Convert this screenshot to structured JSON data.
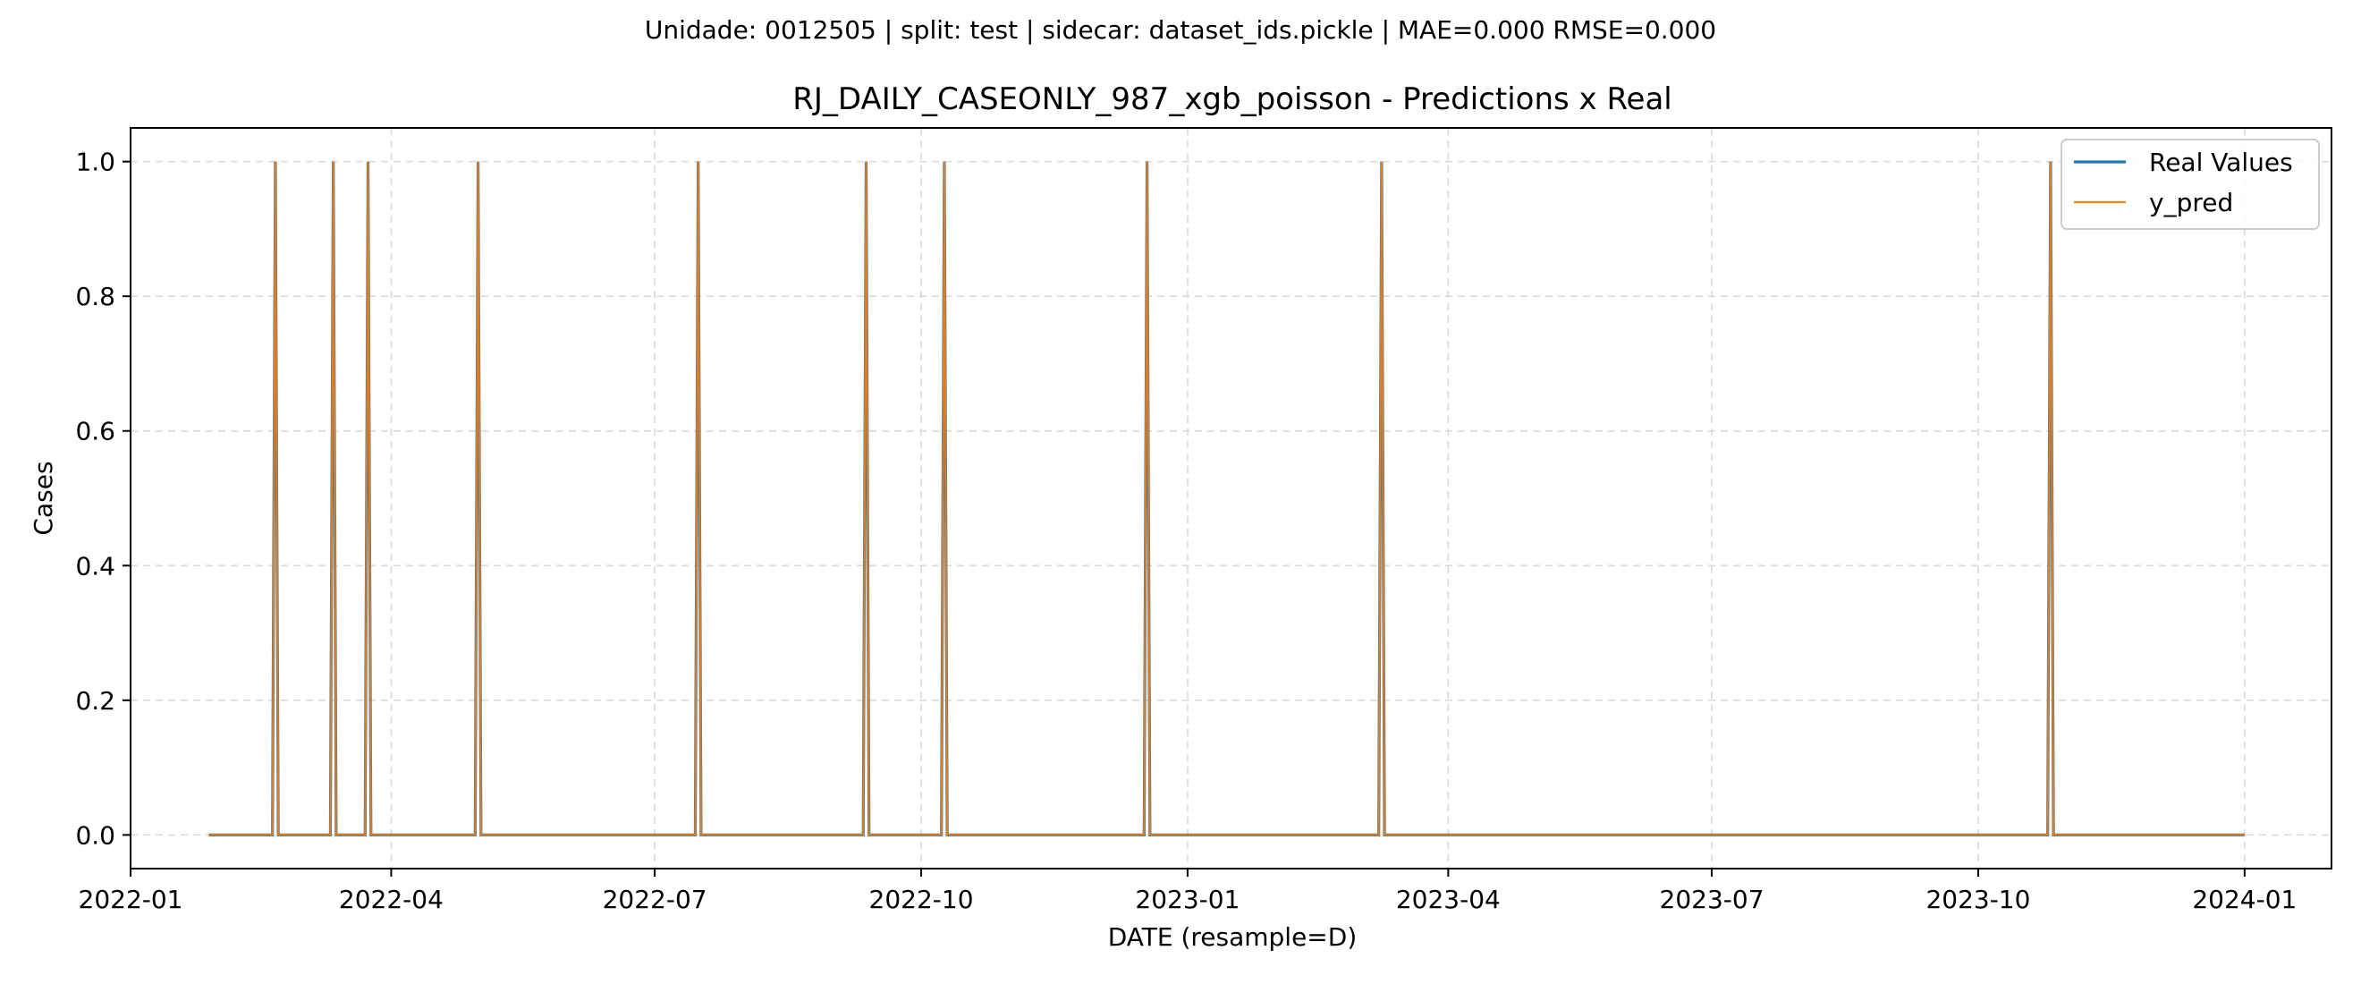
{
  "figure": {
    "suptitle": "Unidade: 0012505 | split: test | sidecar: dataset_ids.pickle | MAE=0.000  RMSE=0.000"
  },
  "chart_data": {
    "type": "line",
    "title": "RJ_DAILY_CASEONLY_987_xgb_poisson - Predictions x Real",
    "xlabel": "DATE (resample=D)",
    "ylabel": "Cases",
    "x_range": [
      "2022-01-01",
      "2024-01-31"
    ],
    "ylim": [
      -0.05,
      1.05
    ],
    "x_ticks": [
      "2022-01",
      "2022-04",
      "2022-07",
      "2022-10",
      "2023-01",
      "2023-04",
      "2023-07",
      "2023-10",
      "2024-01"
    ],
    "y_ticks": [
      "0.0",
      "0.2",
      "0.4",
      "0.6",
      "0.8",
      "1.0"
    ],
    "grid": true,
    "legend_position": "top-right",
    "date_start": "2022-01-28",
    "date_end": "2024-01-01",
    "baseline_value": 0,
    "spike_dates": [
      "2022-02-20",
      "2022-03-12",
      "2022-03-24",
      "2022-05-01",
      "2022-07-16",
      "2022-09-12",
      "2022-10-09",
      "2022-12-18",
      "2023-03-09",
      "2023-10-26"
    ],
    "spike_value": 1,
    "series": [
      {
        "name": "Real Values",
        "color": "#1f77b4",
        "line_width": 3.2
      },
      {
        "name": "y_pred",
        "color": "#ff7f0e",
        "line_width": 2.2,
        "opacity": 0.85
      }
    ]
  }
}
